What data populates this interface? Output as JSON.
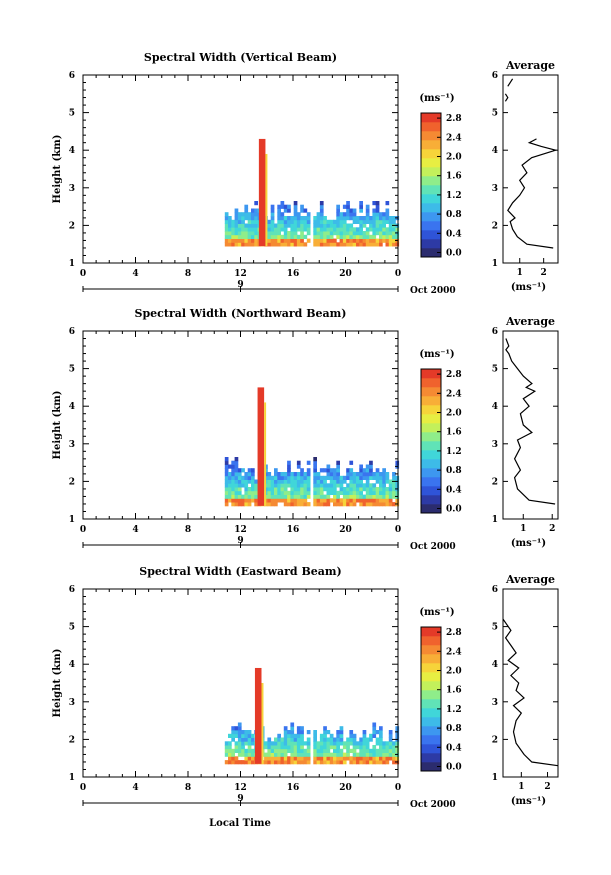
{
  "footer": {
    "xlabel": "Local Time"
  },
  "colorbar": {
    "unit": "(ms⁻¹)",
    "colors": [
      "#2b2c6e",
      "#2d3aa5",
      "#2f54d8",
      "#3a74ef",
      "#3d97f0",
      "#3dbbe8",
      "#40d6d9",
      "#60e3b7",
      "#8fed8a",
      "#c3f05b",
      "#e7ee42",
      "#f6d43a",
      "#f8ae37",
      "#f58a33",
      "#f0622d",
      "#e43a28"
    ]
  },
  "chart_data": [
    {
      "type": "heatmap",
      "title": "Spectral Width (Vertical Beam)",
      "ylabel": "Height (km)",
      "xticks": [
        "0",
        "4",
        "8",
        "12",
        "16",
        "20",
        "0"
      ],
      "yticks": [
        "1",
        "2",
        "3",
        "4",
        "5",
        "6"
      ],
      "xlim": [
        0,
        24
      ],
      "ylim": [
        1,
        6
      ],
      "date_label": "9",
      "date_suffix": "Oct 2000",
      "colorbar_ticks": [
        "0.0",
        "0.4",
        "0.8",
        "1.2",
        "1.6",
        "2.0",
        "2.4",
        "2.8"
      ],
      "colorbar_range": [
        0,
        3.0
      ],
      "data_start_hour": 10.8,
      "data_end_hour": 24,
      "data_bottom_km": 1.45,
      "data_top_km": 2.6,
      "spike": {
        "hour": 13.6,
        "top_km": 4.3,
        "value": 2.8
      },
      "gap_hours": [
        17.3
      ],
      "average_profile": {
        "title": "Average",
        "xlabel": "(ms⁻¹)",
        "xticks": [
          "1",
          "2"
        ],
        "xlim": [
          0.3,
          2.6
        ],
        "points": [
          [
            2.4,
            1.4
          ],
          [
            1.3,
            1.5
          ],
          [
            0.9,
            1.7
          ],
          [
            0.7,
            1.9
          ],
          [
            0.6,
            2.1
          ],
          [
            0.8,
            2.2
          ],
          [
            0.5,
            2.4
          ],
          [
            0.7,
            2.6
          ],
          [
            1.0,
            2.8
          ],
          [
            1.2,
            3.0
          ],
          [
            1.0,
            3.2
          ],
          [
            1.3,
            3.4
          ],
          [
            1.1,
            3.6
          ],
          [
            1.5,
            3.8
          ],
          [
            2.5,
            4.0
          ],
          [
            1.9,
            4.1
          ],
          [
            1.4,
            4.2
          ],
          [
            1.7,
            4.3
          ]
        ],
        "top_points": [
          [
            0.4,
            5.3
          ],
          [
            0.5,
            5.4
          ],
          [
            0.4,
            5.5
          ]
        ],
        "top_points2": [
          [
            0.5,
            5.7
          ],
          [
            0.7,
            5.9
          ]
        ]
      }
    },
    {
      "type": "heatmap",
      "title": "Spectral Width (Northward Beam)",
      "ylabel": "Height (km)",
      "xticks": [
        "0",
        "4",
        "8",
        "12",
        "16",
        "20",
        "0"
      ],
      "yticks": [
        "1",
        "2",
        "3",
        "4",
        "5",
        "6"
      ],
      "xlim": [
        0,
        24
      ],
      "ylim": [
        1,
        6
      ],
      "date_label": "9",
      "date_suffix": "Oct 2000",
      "colorbar_ticks": [
        "0.0",
        "0.4",
        "0.8",
        "1.2",
        "1.6",
        "2.0",
        "2.4",
        "2.8"
      ],
      "colorbar_range": [
        0,
        3.0
      ],
      "data_start_hour": 10.8,
      "data_end_hour": 24,
      "data_bottom_km": 1.35,
      "data_top_km": 2.6,
      "spike": {
        "hour": 13.5,
        "top_km": 4.5,
        "value": 2.8
      },
      "gap_hours": [
        17.3
      ],
      "average_profile": {
        "title": "Average",
        "xlabel": "(ms⁻¹)",
        "xticks": [
          "1",
          "2"
        ],
        "xlim": [
          0.3,
          2.2
        ],
        "points": [
          [
            2.1,
            1.4
          ],
          [
            1.2,
            1.5
          ],
          [
            0.8,
            1.8
          ],
          [
            0.7,
            2.1
          ],
          [
            0.9,
            2.3
          ],
          [
            0.7,
            2.6
          ],
          [
            0.9,
            2.9
          ],
          [
            0.8,
            3.1
          ],
          [
            1.3,
            3.3
          ],
          [
            1.0,
            3.5
          ],
          [
            0.9,
            3.8
          ],
          [
            1.2,
            4.0
          ],
          [
            1.0,
            4.2
          ],
          [
            1.4,
            4.4
          ],
          [
            1.1,
            4.5
          ],
          [
            1.3,
            4.6
          ],
          [
            1.0,
            4.8
          ],
          [
            0.8,
            5.0
          ],
          [
            0.6,
            5.2
          ],
          [
            0.5,
            5.4
          ],
          [
            0.4,
            5.5
          ],
          [
            0.5,
            5.6
          ],
          [
            0.4,
            5.8
          ]
        ]
      }
    },
    {
      "type": "heatmap",
      "title": "Spectral Width (Eastward Beam)",
      "ylabel": "Height (km)",
      "xticks": [
        "0",
        "4",
        "8",
        "12",
        "16",
        "20",
        "0"
      ],
      "yticks": [
        "1",
        "2",
        "3",
        "4",
        "5",
        "6"
      ],
      "xlim": [
        0,
        24
      ],
      "ylim": [
        1,
        6
      ],
      "date_label": "9",
      "date_suffix": "Oct 2000",
      "colorbar_ticks": [
        "0.0",
        "0.4",
        "0.8",
        "1.2",
        "1.6",
        "2.0",
        "2.4",
        "2.8"
      ],
      "colorbar_range": [
        0,
        3.0
      ],
      "data_start_hour": 10.8,
      "data_end_hour": 24,
      "data_bottom_km": 1.35,
      "data_top_km": 2.4,
      "spike": {
        "hour": 13.3,
        "top_km": 3.9,
        "value": 2.8
      },
      "gap_hours": [
        17.3
      ],
      "average_profile": {
        "title": "Average",
        "xlabel": "(ms⁻¹)",
        "xticks": [
          "1",
          "2"
        ],
        "xlim": [
          0.3,
          2.4
        ],
        "points": [
          [
            2.4,
            1.3
          ],
          [
            1.4,
            1.4
          ],
          [
            1.1,
            1.6
          ],
          [
            0.8,
            1.9
          ],
          [
            0.7,
            2.2
          ],
          [
            0.8,
            2.5
          ],
          [
            1.0,
            2.7
          ],
          [
            0.7,
            2.9
          ],
          [
            1.1,
            3.1
          ],
          [
            0.8,
            3.3
          ],
          [
            0.9,
            3.5
          ],
          [
            0.6,
            3.7
          ],
          [
            0.9,
            3.9
          ],
          [
            0.5,
            4.1
          ],
          [
            0.8,
            4.3
          ],
          [
            0.6,
            4.5
          ],
          [
            0.4,
            4.7
          ],
          [
            0.6,
            4.9
          ],
          [
            0.4,
            5.1
          ],
          [
            0.3,
            5.2
          ]
        ]
      }
    }
  ]
}
